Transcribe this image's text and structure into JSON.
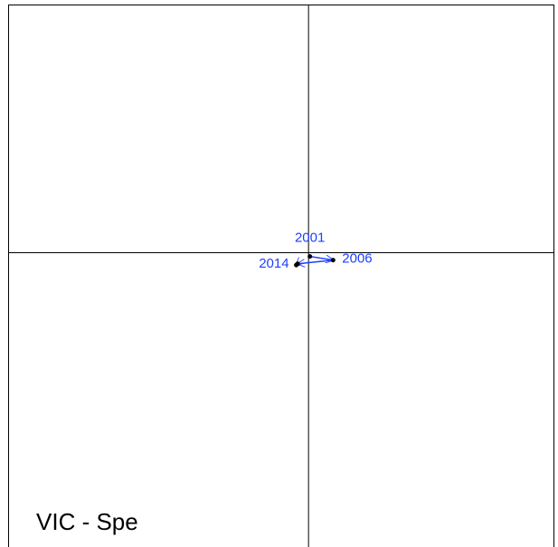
{
  "chart_data": {
    "type": "line",
    "title": "VIC  - Spe",
    "x": [
      0.005,
      0.09,
      -0.04,
      -0.045
    ],
    "y": [
      -0.015,
      -0.03,
      -0.045,
      -0.05
    ],
    "point_labels": [
      "2001",
      "2006",
      null,
      "2014"
    ],
    "color": "#1f3fff",
    "marker_color": "#000000",
    "xlim": [
      -1.1,
      0.9
    ],
    "ylim": [
      -1.19,
      1.0
    ],
    "hline": 0,
    "vline": 0
  }
}
